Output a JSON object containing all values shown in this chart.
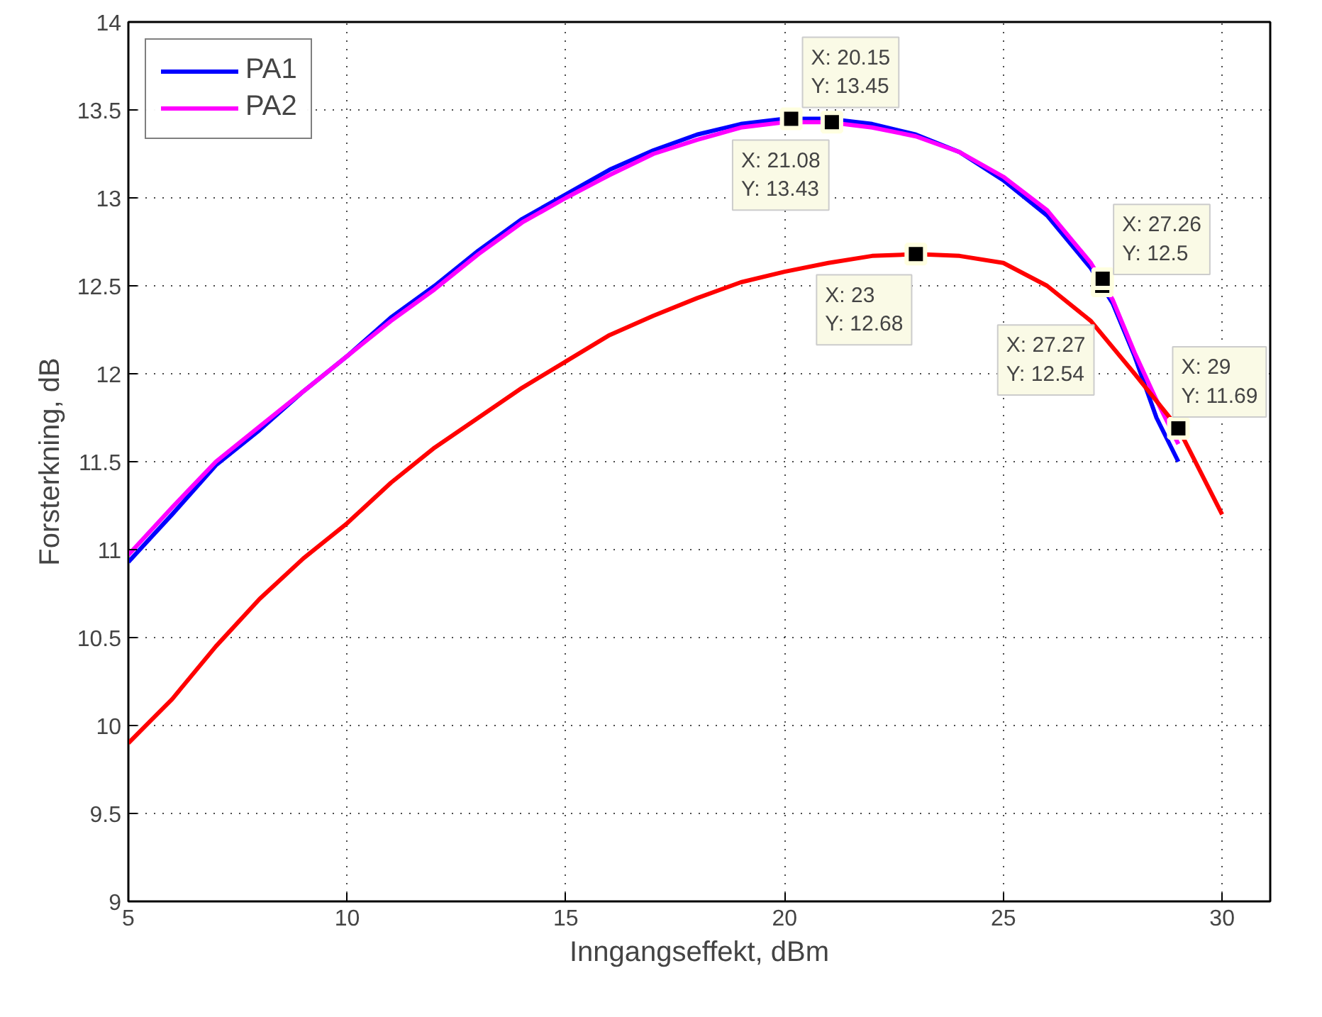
{
  "chart_data": {
    "type": "line",
    "xlabel": "Inngangseffekt, dBm",
    "ylabel": "Forsterkning, dB",
    "xlim": [
      5,
      31.1
    ],
    "ylim": [
      9,
      14
    ],
    "xticks": [
      5,
      10,
      15,
      20,
      25,
      30
    ],
    "yticks": [
      9,
      9.5,
      10,
      10.5,
      11,
      11.5,
      12,
      12.5,
      13,
      13.5,
      14
    ],
    "grid": true,
    "legend": "top left",
    "line_style": "solid",
    "series": [
      {
        "name": "PA1",
        "color": "#0000ff",
        "x": [
          5,
          6,
          7,
          8,
          9,
          10,
          11,
          12,
          13,
          14,
          15,
          16,
          17,
          18,
          19,
          20,
          21,
          22,
          23,
          24,
          25,
          26,
          27,
          27.5,
          28,
          28.5,
          29
        ],
        "values": [
          10.93,
          11.2,
          11.48,
          11.68,
          11.9,
          12.1,
          12.32,
          12.5,
          12.7,
          12.88,
          13.02,
          13.16,
          13.27,
          13.36,
          13.42,
          13.45,
          13.45,
          13.42,
          13.36,
          13.26,
          13.1,
          12.9,
          12.6,
          12.4,
          12.1,
          11.75,
          11.5
        ]
      },
      {
        "name": "PA2",
        "color": "#ff00ff",
        "x": [
          5,
          6,
          7,
          8,
          9,
          10,
          11,
          12,
          13,
          14,
          15,
          16,
          17,
          18,
          19,
          20,
          21,
          22,
          23,
          24,
          25,
          26,
          27,
          27.5,
          28,
          28.5,
          29
        ],
        "values": [
          10.97,
          11.24,
          11.5,
          11.7,
          11.9,
          12.1,
          12.3,
          12.48,
          12.68,
          12.86,
          13.0,
          13.13,
          13.25,
          13.33,
          13.4,
          13.43,
          13.43,
          13.4,
          13.35,
          13.26,
          13.12,
          12.93,
          12.63,
          12.42,
          12.12,
          11.85,
          11.6
        ]
      },
      {
        "color": "#ff0000",
        "x": [
          5,
          6,
          7,
          8,
          9,
          10,
          11,
          12,
          13,
          14,
          15,
          16,
          17,
          18,
          19,
          20,
          21,
          22,
          23,
          24,
          25,
          26,
          27,
          28,
          29,
          30
        ],
        "values": [
          9.9,
          10.15,
          10.45,
          10.72,
          10.95,
          11.15,
          11.38,
          11.58,
          11.75,
          11.92,
          12.07,
          12.22,
          12.33,
          12.43,
          12.52,
          12.58,
          12.63,
          12.67,
          12.68,
          12.67,
          12.63,
          12.5,
          12.3,
          12.0,
          11.69,
          11.2
        ]
      }
    ],
    "annotations": [
      {
        "text": "X: 20.15\nY: 13.45",
        "x": 20.15,
        "y": 13.45
      },
      {
        "text": "X: 21.08\nY: 13.43",
        "x": 21.08,
        "y": 13.43
      },
      {
        "text": "X: 23\nY: 12.68",
        "x": 23,
        "y": 12.68
      },
      {
        "text": "X: 27.26\nY: 12.5",
        "x": 27.26,
        "y": 12.5
      },
      {
        "text": "X: 27.27\nY: 12.54",
        "x": 27.27,
        "y": 12.54
      },
      {
        "text": "X: 29\nY: 11.69",
        "x": 29,
        "y": 11.69
      }
    ]
  }
}
